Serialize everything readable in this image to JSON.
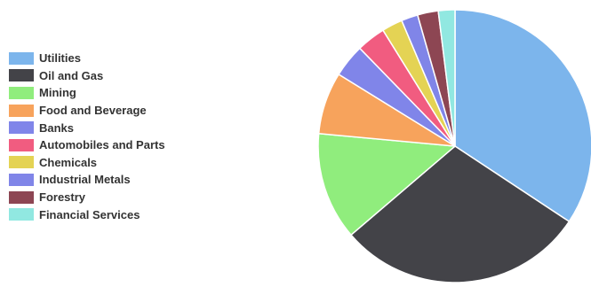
{
  "chart_data": {
    "type": "pie",
    "legend_position": "left",
    "slices": [
      {
        "label": "Utilities",
        "value": 35.0,
        "color": "#7cb5ec"
      },
      {
        "label": "Oil and Gas",
        "value": 30.0,
        "color": "#434348"
      },
      {
        "label": "Mining",
        "value": 13.0,
        "color": "#90ed7d"
      },
      {
        "label": "Food and Beverage",
        "value": 7.5,
        "color": "#f7a35c"
      },
      {
        "label": "Banks",
        "value": 4.0,
        "color": "#8085e9"
      },
      {
        "label": "Automobiles and Parts",
        "value": 3.5,
        "color": "#f15c80"
      },
      {
        "label": "Chemicals",
        "value": 2.5,
        "color": "#e4d354"
      },
      {
        "label": "Industrial Metals",
        "value": 2.0,
        "color": "#8085e8"
      },
      {
        "label": "Forestry",
        "value": 2.5,
        "color": "#8d4653"
      },
      {
        "label": "Financial Services",
        "value": 2.0,
        "color": "#91e8e1"
      }
    ]
  }
}
